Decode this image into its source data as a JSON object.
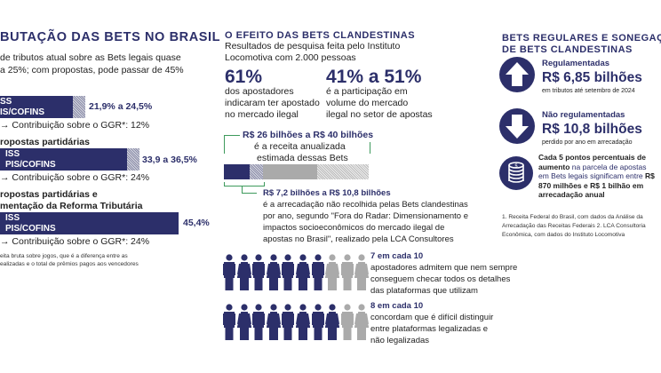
{
  "left": {
    "title": "BUTAÇÃO DAS BETS NO BRASIL",
    "subtitle_1": "de tributos atual sobre as Bets legais quase",
    "subtitle_2": "a 25%; com propostas, pode passar de 45%",
    "scenarios": [
      {
        "heading": "",
        "bar_line1": "SS",
        "bar_line2": "IS/COFINS",
        "range": "21,9% a 24,5%",
        "contribution": "→ Contribuição sobre o GGR*: 12%"
      },
      {
        "heading": "ropostas partidárias",
        "bar_line1": "ISS",
        "bar_line2": "PIS/COFINS",
        "range": "33,9 a 36,5%",
        "contribution": "→ Contribuição sobre o GGR*: 24%"
      },
      {
        "heading": "ropostas partidárias e",
        "heading_2": "mentação da Reforma Tributária",
        "bar_line1": "ISS",
        "bar_line2": "PIS/COFINS",
        "range": "45,4%",
        "contribution": "→ Contribuição sobre o GGR*: 24%"
      }
    ],
    "footnote_1": "eita bruta sobre jogos, que é a diferença entre as",
    "footnote_2": "ealizadas e o total de prêmios pagos aos vencedores"
  },
  "middle": {
    "title": "O EFEITO DAS BETS CLANDESTINAS",
    "subtitle_1": "Resultados de pesquisa feita pelo Instituto",
    "subtitle_2": "Locomotiva com 2.000 pessoas",
    "stat1": {
      "value": "61%",
      "l1": "dos apostadores",
      "l2": "indicaram ter apostado",
      "l3": "no mercado ilegal"
    },
    "stat2": {
      "value": "41% a 51%",
      "l1": "é a participação em",
      "l2": "volume do mercado",
      "l3": "ilegal no setor de apostas"
    },
    "revenue": {
      "value": "R$ 26 bilhões a R$ 40 bilhões",
      "l1": "é a receita anualizada",
      "l2": "estimada dessas Bets"
    },
    "lost": {
      "value": "R$ 7,2 bilhões a R$ 10,8 bilhões",
      "l1": "é a arrecadação não recolhida pelas Bets clandestinas",
      "l2": "por ano, segundo \"Fora do Radar: Dimensionamento e",
      "l3": "impactos socioeconômicos do mercado ilegal de",
      "l4": "apostas no Brasil\", realizado pela LCA Consultores"
    },
    "people1": {
      "count": 7,
      "total": 10,
      "value": "7 em cada 10",
      "l1": "apostadores admitem que nem sempre",
      "l2": "conseguem checar todos os detalhes",
      "l3": "das plataformas que utilizam"
    },
    "people2": {
      "count": 8,
      "total": 10,
      "value": "8 em cada 10",
      "l1": "concordam que é difícil distinguir",
      "l2": "entre plataformas legalizadas e",
      "l3": "não legalizadas"
    }
  },
  "right": {
    "title_1": "BETS REGULARES E SONEGAÇÃO",
    "title_2": "DE BETS CLANDESTINAS",
    "regulated": {
      "label": "Regulamentadas",
      "value": "R$ 6,85 bilhões",
      "note": "em tributos até setembro de 2024"
    },
    "unregulated": {
      "label": "Não regulamentadas",
      "value": "R$ 10,8 bilhões",
      "note": "perdido por ano em arrecadação"
    },
    "coins": {
      "l1": "Cada 5 pontos percentuais de aumento",
      "l2": "na parcela de apostas em Bets legais",
      "l3a": "significam entre ",
      "l3b": "R$ 870 milhões e R$ 1",
      "l4": "bilhão em arrecadação anual"
    },
    "footnote_1": "1. Receita Federal do Brasil, com dados da Análise da",
    "footnote_2": "Arrecadação das Receitas Federais 2. LCA Consultoria",
    "footnote_3": "Econômica, com dados do Instituto Locomotiva"
  },
  "colors": {
    "navy": "#2c2f6a",
    "green": "#3e9a5c",
    "gray": "#aaaaaa"
  }
}
